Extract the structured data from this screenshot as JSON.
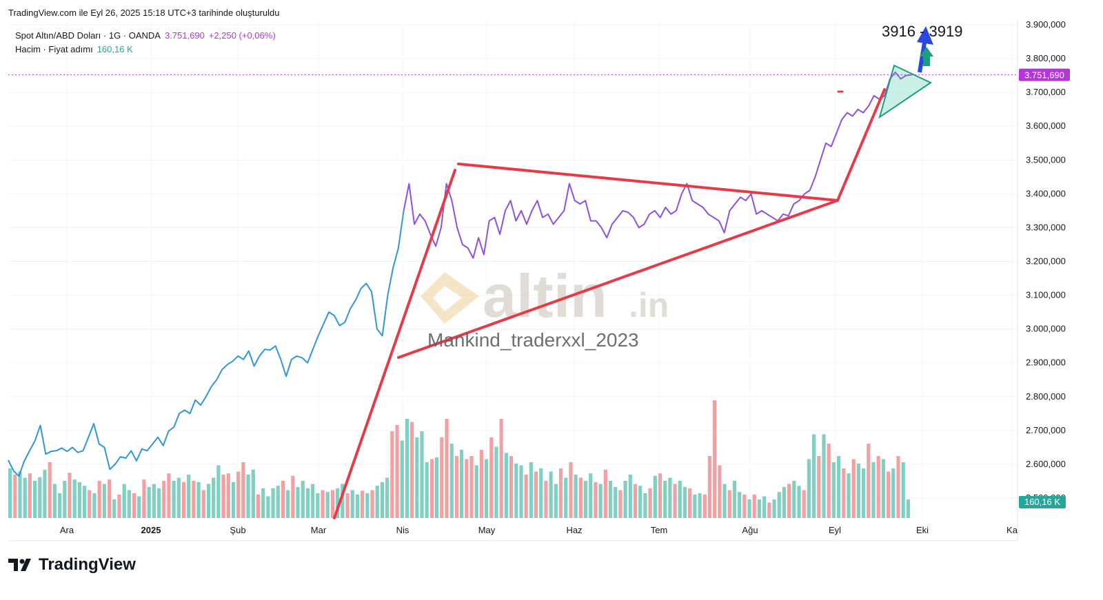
{
  "caption": "TradingView.com ile Eyl 26, 2025 15:18 UTC+3 tarihinde oluşturuldu",
  "legend": {
    "symbol": "Spot Altın/ABD Doları · 1G · OANDA",
    "price": "3.751,690",
    "change": "+2,250 (+0,06%)",
    "volume_label": "Hacim · Fiyat adımı",
    "volume_value": "160,16 K"
  },
  "footer_brand": "TradingView",
  "colors": {
    "price_line": "#2f96d6",
    "price_line_recent": "#8e4fe0",
    "price_marker": "#b535d9",
    "trendline": "#e53b46",
    "triangle": "#1a9e7c",
    "triangle_fill": "rgba(64,196,160,0.28)",
    "vol_up": "#7fcfc2",
    "vol_down": "#f2a1a3",
    "arrow_blue": "#2a48e0",
    "arrow_green": "#1a9e7c"
  },
  "chart_data": {
    "type": "line",
    "ylabels": [
      "3.900,000",
      "3.800,000",
      "3.700,000",
      "3.600,000",
      "3.500,000",
      "3.400,000",
      "3.300,000",
      "3.200,000",
      "3.100,000",
      "3.000,000",
      "2.900,000",
      "2.800,000",
      "2.700,000",
      "2.600,000",
      "2.500,000"
    ],
    "xlabels": [
      "Ara",
      "2025",
      "Şub",
      "Mar",
      "Nis",
      "May",
      "Haz",
      "Tem",
      "Ağu",
      "Eyl",
      "Eki",
      "Ka"
    ],
    "ylim": [
      2500,
      3900
    ],
    "price_label": "3.751,690",
    "volume_label": "160,16 K",
    "annotations": {
      "target": "3916 - 3919",
      "watermark_brand": "altin",
      "watermark_tld": ".in",
      "watermark_author": "Mankind_traderxxl_2023"
    },
    "series": [
      {
        "values": [
          2612,
          2580,
          2565,
          2610,
          2640,
          2670,
          2715,
          2630,
          2638,
          2640,
          2648,
          2638,
          2650,
          2635,
          2640,
          2680,
          2720,
          2660,
          2650,
          2585,
          2600,
          2622,
          2618,
          2640,
          2610,
          2645,
          2640,
          2660,
          2680,
          2655,
          2698,
          2710,
          2750,
          2760,
          2750,
          2790,
          2775,
          2800,
          2830,
          2850,
          2880,
          2895,
          2905,
          2920,
          2910,
          2935,
          2890,
          2920,
          2940,
          2938,
          2950,
          2910,
          2860,
          2910,
          2920,
          2915,
          2900,
          2940,
          2980,
          3015,
          3050,
          3040,
          3010,
          3020,
          3060,
          3085,
          3120,
          3135,
          3110,
          3000,
          2980,
          3100,
          3180,
          3240,
          3350,
          3430,
          3310,
          3340,
          3320,
          3280,
          3245,
          3300,
          3430,
          3380,
          3300,
          3250,
          3240,
          3210,
          3270,
          3220,
          3320,
          3330,
          3280,
          3350,
          3380,
          3320,
          3350,
          3310,
          3350,
          3380,
          3330,
          3340,
          3310,
          3330,
          3350,
          3430,
          3380,
          3370,
          3380,
          3320,
          3320,
          3300,
          3270,
          3310,
          3330,
          3350,
          3345,
          3330,
          3300,
          3310,
          3340,
          3350,
          3330,
          3360,
          3340,
          3350,
          3400,
          3430,
          3380,
          3370,
          3360,
          3340,
          3330,
          3320,
          3285,
          3350,
          3370,
          3390,
          3380,
          3400,
          3340,
          3350,
          3340,
          3330,
          3320,
          3340,
          3335,
          3370,
          3380,
          3400,
          3410,
          3450,
          3500,
          3550,
          3540,
          3580,
          3620,
          3640,
          3630,
          3650,
          3640,
          3660,
          3690,
          3680,
          3690,
          3740,
          3760,
          3740,
          3750,
          3752
        ],
        "recent_color_from": 74
      }
    ],
    "volume": [
      {
        "v": 80,
        "up": 1
      },
      {
        "v": 70,
        "up": 0
      },
      {
        "v": 75,
        "up": 1
      },
      {
        "v": 65,
        "up": 1
      },
      {
        "v": 72,
        "up": 0
      },
      {
        "v": 60,
        "up": 1
      },
      {
        "v": 66,
        "up": 1
      },
      {
        "v": 78,
        "up": 1
      },
      {
        "v": 90,
        "up": 0
      },
      {
        "v": 55,
        "up": 1
      },
      {
        "v": 40,
        "up": 1
      },
      {
        "v": 60,
        "up": 1
      },
      {
        "v": 73,
        "up": 0
      },
      {
        "v": 62,
        "up": 1
      },
      {
        "v": 58,
        "up": 1
      },
      {
        "v": 52,
        "up": 1
      },
      {
        "v": 45,
        "up": 0
      },
      {
        "v": 40,
        "up": 1
      },
      {
        "v": 60,
        "up": 0
      },
      {
        "v": 55,
        "up": 1
      },
      {
        "v": 62,
        "up": 0
      },
      {
        "v": 30,
        "up": 1
      },
      {
        "v": 38,
        "up": 0
      },
      {
        "v": 55,
        "up": 1
      },
      {
        "v": 45,
        "up": 1
      },
      {
        "v": 40,
        "up": 0
      },
      {
        "v": 35,
        "up": 1
      },
      {
        "v": 62,
        "up": 0
      },
      {
        "v": 50,
        "up": 1
      },
      {
        "v": 55,
        "up": 1
      },
      {
        "v": 48,
        "up": 1
      },
      {
        "v": 60,
        "up": 0
      },
      {
        "v": 72,
        "up": 0
      },
      {
        "v": 60,
        "up": 1
      },
      {
        "v": 65,
        "up": 1
      },
      {
        "v": 58,
        "up": 0
      },
      {
        "v": 70,
        "up": 1
      },
      {
        "v": 60,
        "up": 0
      },
      {
        "v": 58,
        "up": 1
      },
      {
        "v": 45,
        "up": 0
      },
      {
        "v": 55,
        "up": 1
      },
      {
        "v": 65,
        "up": 1
      },
      {
        "v": 85,
        "up": 1
      },
      {
        "v": 70,
        "up": 0
      },
      {
        "v": 72,
        "up": 0
      },
      {
        "v": 58,
        "up": 1
      },
      {
        "v": 75,
        "up": 0
      },
      {
        "v": 90,
        "up": 0
      },
      {
        "v": 70,
        "up": 1
      },
      {
        "v": 78,
        "up": 1
      },
      {
        "v": 38,
        "up": 0
      },
      {
        "v": 48,
        "up": 1
      },
      {
        "v": 35,
        "up": 1
      },
      {
        "v": 48,
        "up": 1
      },
      {
        "v": 52,
        "up": 1
      },
      {
        "v": 60,
        "up": 0
      },
      {
        "v": 45,
        "up": 1
      },
      {
        "v": 68,
        "up": 0
      },
      {
        "v": 50,
        "up": 1
      },
      {
        "v": 60,
        "up": 1
      },
      {
        "v": 48,
        "up": 1
      },
      {
        "v": 55,
        "up": 1
      },
      {
        "v": 40,
        "up": 1
      },
      {
        "v": 45,
        "up": 0
      },
      {
        "v": 42,
        "up": 1
      },
      {
        "v": 45,
        "up": 0
      },
      {
        "v": 48,
        "up": 1
      },
      {
        "v": 55,
        "up": 1
      },
      {
        "v": 40,
        "up": 0
      },
      {
        "v": 45,
        "up": 1
      },
      {
        "v": 38,
        "up": 1
      },
      {
        "v": 44,
        "up": 0
      },
      {
        "v": 40,
        "up": 1
      },
      {
        "v": 45,
        "up": 0
      },
      {
        "v": 52,
        "up": 1
      },
      {
        "v": 58,
        "up": 1
      },
      {
        "v": 65,
        "up": 1
      },
      {
        "v": 140,
        "up": 0
      },
      {
        "v": 150,
        "up": 0
      },
      {
        "v": 125,
        "up": 1
      },
      {
        "v": 160,
        "up": 1
      },
      {
        "v": 155,
        "up": 0
      },
      {
        "v": 130,
        "up": 1
      },
      {
        "v": 140,
        "up": 1
      },
      {
        "v": 90,
        "up": 1
      },
      {
        "v": 95,
        "up": 0
      },
      {
        "v": 98,
        "up": 1
      },
      {
        "v": 130,
        "up": 0
      },
      {
        "v": 160,
        "up": 0
      },
      {
        "v": 120,
        "up": 1
      },
      {
        "v": 100,
        "up": 0
      },
      {
        "v": 110,
        "up": 1
      },
      {
        "v": 95,
        "up": 0
      },
      {
        "v": 100,
        "up": 0
      },
      {
        "v": 85,
        "up": 1
      },
      {
        "v": 110,
        "up": 0
      },
      {
        "v": 95,
        "up": 1
      },
      {
        "v": 130,
        "up": 0
      },
      {
        "v": 115,
        "up": 1
      },
      {
        "v": 160,
        "up": 0
      },
      {
        "v": 105,
        "up": 1
      },
      {
        "v": 100,
        "up": 0
      },
      {
        "v": 88,
        "up": 1
      },
      {
        "v": 85,
        "up": 1
      },
      {
        "v": 70,
        "up": 0
      },
      {
        "v": 90,
        "up": 1
      },
      {
        "v": 75,
        "up": 0
      },
      {
        "v": 80,
        "up": 1
      },
      {
        "v": 60,
        "up": 0
      },
      {
        "v": 75,
        "up": 1
      },
      {
        "v": 55,
        "up": 1
      },
      {
        "v": 80,
        "up": 0
      },
      {
        "v": 65,
        "up": 1
      },
      {
        "v": 90,
        "up": 0
      },
      {
        "v": 70,
        "up": 1
      },
      {
        "v": 65,
        "up": 0
      },
      {
        "v": 60,
        "up": 1
      },
      {
        "v": 72,
        "up": 1
      },
      {
        "v": 58,
        "up": 0
      },
      {
        "v": 55,
        "up": 1
      },
      {
        "v": 78,
        "up": 0
      },
      {
        "v": 60,
        "up": 1
      },
      {
        "v": 50,
        "up": 1
      },
      {
        "v": 45,
        "up": 0
      },
      {
        "v": 60,
        "up": 1
      },
      {
        "v": 70,
        "up": 1
      },
      {
        "v": 55,
        "up": 0
      },
      {
        "v": 52,
        "up": 1
      },
      {
        "v": 40,
        "up": 1
      },
      {
        "v": 48,
        "up": 0
      },
      {
        "v": 68,
        "up": 1
      },
      {
        "v": 72,
        "up": 0
      },
      {
        "v": 60,
        "up": 1
      },
      {
        "v": 65,
        "up": 1
      },
      {
        "v": 55,
        "up": 0
      },
      {
        "v": 60,
        "up": 1
      },
      {
        "v": 50,
        "up": 1
      },
      {
        "v": 48,
        "up": 0
      },
      {
        "v": 38,
        "up": 1
      },
      {
        "v": 40,
        "up": 1
      },
      {
        "v": 38,
        "up": 0
      },
      {
        "v": 100,
        "up": 0
      },
      {
        "v": 190,
        "up": 0
      },
      {
        "v": 85,
        "up": 0
      },
      {
        "v": 55,
        "up": 1
      },
      {
        "v": 45,
        "up": 0
      },
      {
        "v": 60,
        "up": 1
      },
      {
        "v": 42,
        "up": 1
      },
      {
        "v": 38,
        "up": 0
      },
      {
        "v": 30,
        "up": 1
      },
      {
        "v": 38,
        "up": 0
      },
      {
        "v": 30,
        "up": 1
      },
      {
        "v": 35,
        "up": 1
      },
      {
        "v": 25,
        "up": 0
      },
      {
        "v": 30,
        "up": 1
      },
      {
        "v": 42,
        "up": 1
      },
      {
        "v": 50,
        "up": 1
      },
      {
        "v": 55,
        "up": 0
      },
      {
        "v": 60,
        "up": 1
      },
      {
        "v": 52,
        "up": 1
      },
      {
        "v": 45,
        "up": 0
      },
      {
        "v": 95,
        "up": 1
      },
      {
        "v": 135,
        "up": 1
      },
      {
        "v": 100,
        "up": 0
      },
      {
        "v": 135,
        "up": 1
      },
      {
        "v": 120,
        "up": 0
      },
      {
        "v": 90,
        "up": 1
      },
      {
        "v": 100,
        "up": 1
      },
      {
        "v": 80,
        "up": 0
      },
      {
        "v": 72,
        "up": 1
      },
      {
        "v": 95,
        "up": 0
      },
      {
        "v": 88,
        "up": 1
      },
      {
        "v": 80,
        "up": 1
      },
      {
        "v": 120,
        "up": 0
      },
      {
        "v": 90,
        "up": 1
      },
      {
        "v": 100,
        "up": 0
      },
      {
        "v": 95,
        "up": 1
      },
      {
        "v": 75,
        "up": 0
      },
      {
        "v": 80,
        "up": 1
      },
      {
        "v": 100,
        "up": 0
      },
      {
        "v": 90,
        "up": 1
      },
      {
        "v": 30,
        "up": 1
      }
    ]
  }
}
